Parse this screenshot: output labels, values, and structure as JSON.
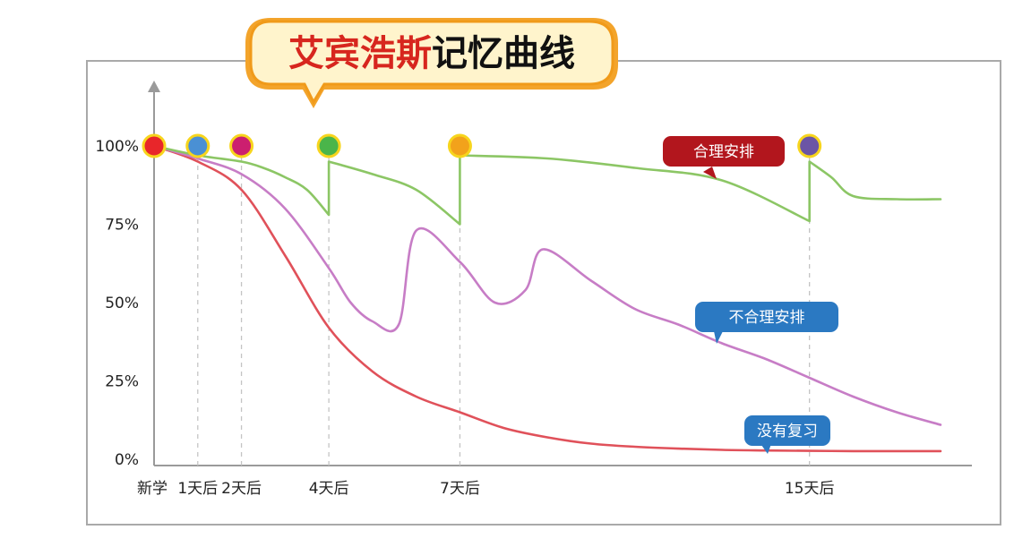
{
  "chart_data": {
    "type": "line",
    "title": {
      "highlight": "艾宾浩斯",
      "rest": "记忆曲线"
    },
    "x_ticks": [
      {
        "label": "新学",
        "x": 0
      },
      {
        "label": "1天后",
        "x": 1
      },
      {
        "label": "2天后",
        "x": 2
      },
      {
        "label": "4天后",
        "x": 4
      },
      {
        "label": "7天后",
        "x": 7
      },
      {
        "label": "15天后",
        "x": 15
      }
    ],
    "y_ticks": [
      {
        "label": "0%",
        "y": 0
      },
      {
        "label": "25%",
        "y": 25
      },
      {
        "label": "50%",
        "y": 50
      },
      {
        "label": "75%",
        "y": 75
      },
      {
        "label": "100%",
        "y": 100
      }
    ],
    "xlim": [
      0,
      18
    ],
    "ylim": [
      0,
      100
    ],
    "grid": "vertical dashed lines at review days",
    "series": [
      {
        "name": "合理安排",
        "color": "#8cc665",
        "label_bg": "#b2161d",
        "points": [
          [
            0,
            100
          ],
          [
            1,
            97
          ],
          [
            2,
            95
          ],
          [
            2.5,
            93
          ],
          [
            3,
            90
          ],
          [
            3.5,
            86
          ],
          [
            4,
            78
          ],
          [
            4,
            95
          ],
          [
            5,
            91
          ],
          [
            6,
            86
          ],
          [
            7,
            75
          ],
          [
            7,
            97
          ],
          [
            9,
            96
          ],
          [
            11,
            93
          ],
          [
            13,
            89
          ],
          [
            15,
            76
          ],
          [
            15,
            95
          ],
          [
            15.5,
            90
          ],
          [
            16,
            84
          ],
          [
            17,
            83
          ],
          [
            18,
            83
          ]
        ],
        "markers": [
          {
            "x": 0,
            "y": 100,
            "color": "#e8262a"
          },
          {
            "x": 1,
            "y": 100,
            "color": "#4a90d4"
          },
          {
            "x": 2,
            "y": 100,
            "color": "#cc1f6f"
          },
          {
            "x": 4,
            "y": 100,
            "color": "#4ab54a"
          },
          {
            "x": 7,
            "y": 100,
            "color": "#f2a21b"
          },
          {
            "x": 15,
            "y": 100,
            "color": "#6b55a5"
          }
        ]
      },
      {
        "name": "不合理安排",
        "color": "#c77dc6",
        "label_bg": "#2b79c2",
        "points": [
          [
            0,
            100
          ],
          [
            1,
            96
          ],
          [
            2,
            91
          ],
          [
            3,
            80
          ],
          [
            4,
            61
          ],
          [
            4.5,
            50
          ],
          [
            5,
            44
          ],
          [
            5.6,
            43
          ],
          [
            6,
            73
          ],
          [
            7,
            63
          ],
          [
            7.8,
            50
          ],
          [
            8.5,
            54
          ],
          [
            8.9,
            67
          ],
          [
            10,
            57
          ],
          [
            11,
            48
          ],
          [
            12,
            43
          ],
          [
            13,
            37
          ],
          [
            14,
            32
          ],
          [
            15,
            26
          ],
          [
            16,
            20
          ],
          [
            17,
            15
          ],
          [
            18,
            11
          ]
        ]
      },
      {
        "name": "没有复习",
        "color": "#e0515a",
        "label_bg": "#2b79c2",
        "points": [
          [
            0,
            100
          ],
          [
            1,
            95
          ],
          [
            2,
            86
          ],
          [
            3,
            65
          ],
          [
            4,
            42
          ],
          [
            5,
            28
          ],
          [
            6,
            20
          ],
          [
            7,
            15
          ],
          [
            8,
            10
          ],
          [
            9,
            7
          ],
          [
            10,
            5
          ],
          [
            11,
            4
          ],
          [
            12,
            3.4
          ],
          [
            13,
            3
          ],
          [
            14,
            2.8
          ],
          [
            15,
            2.7
          ],
          [
            16,
            2.6
          ],
          [
            17,
            2.6
          ],
          [
            18,
            2.6
          ]
        ]
      }
    ]
  }
}
